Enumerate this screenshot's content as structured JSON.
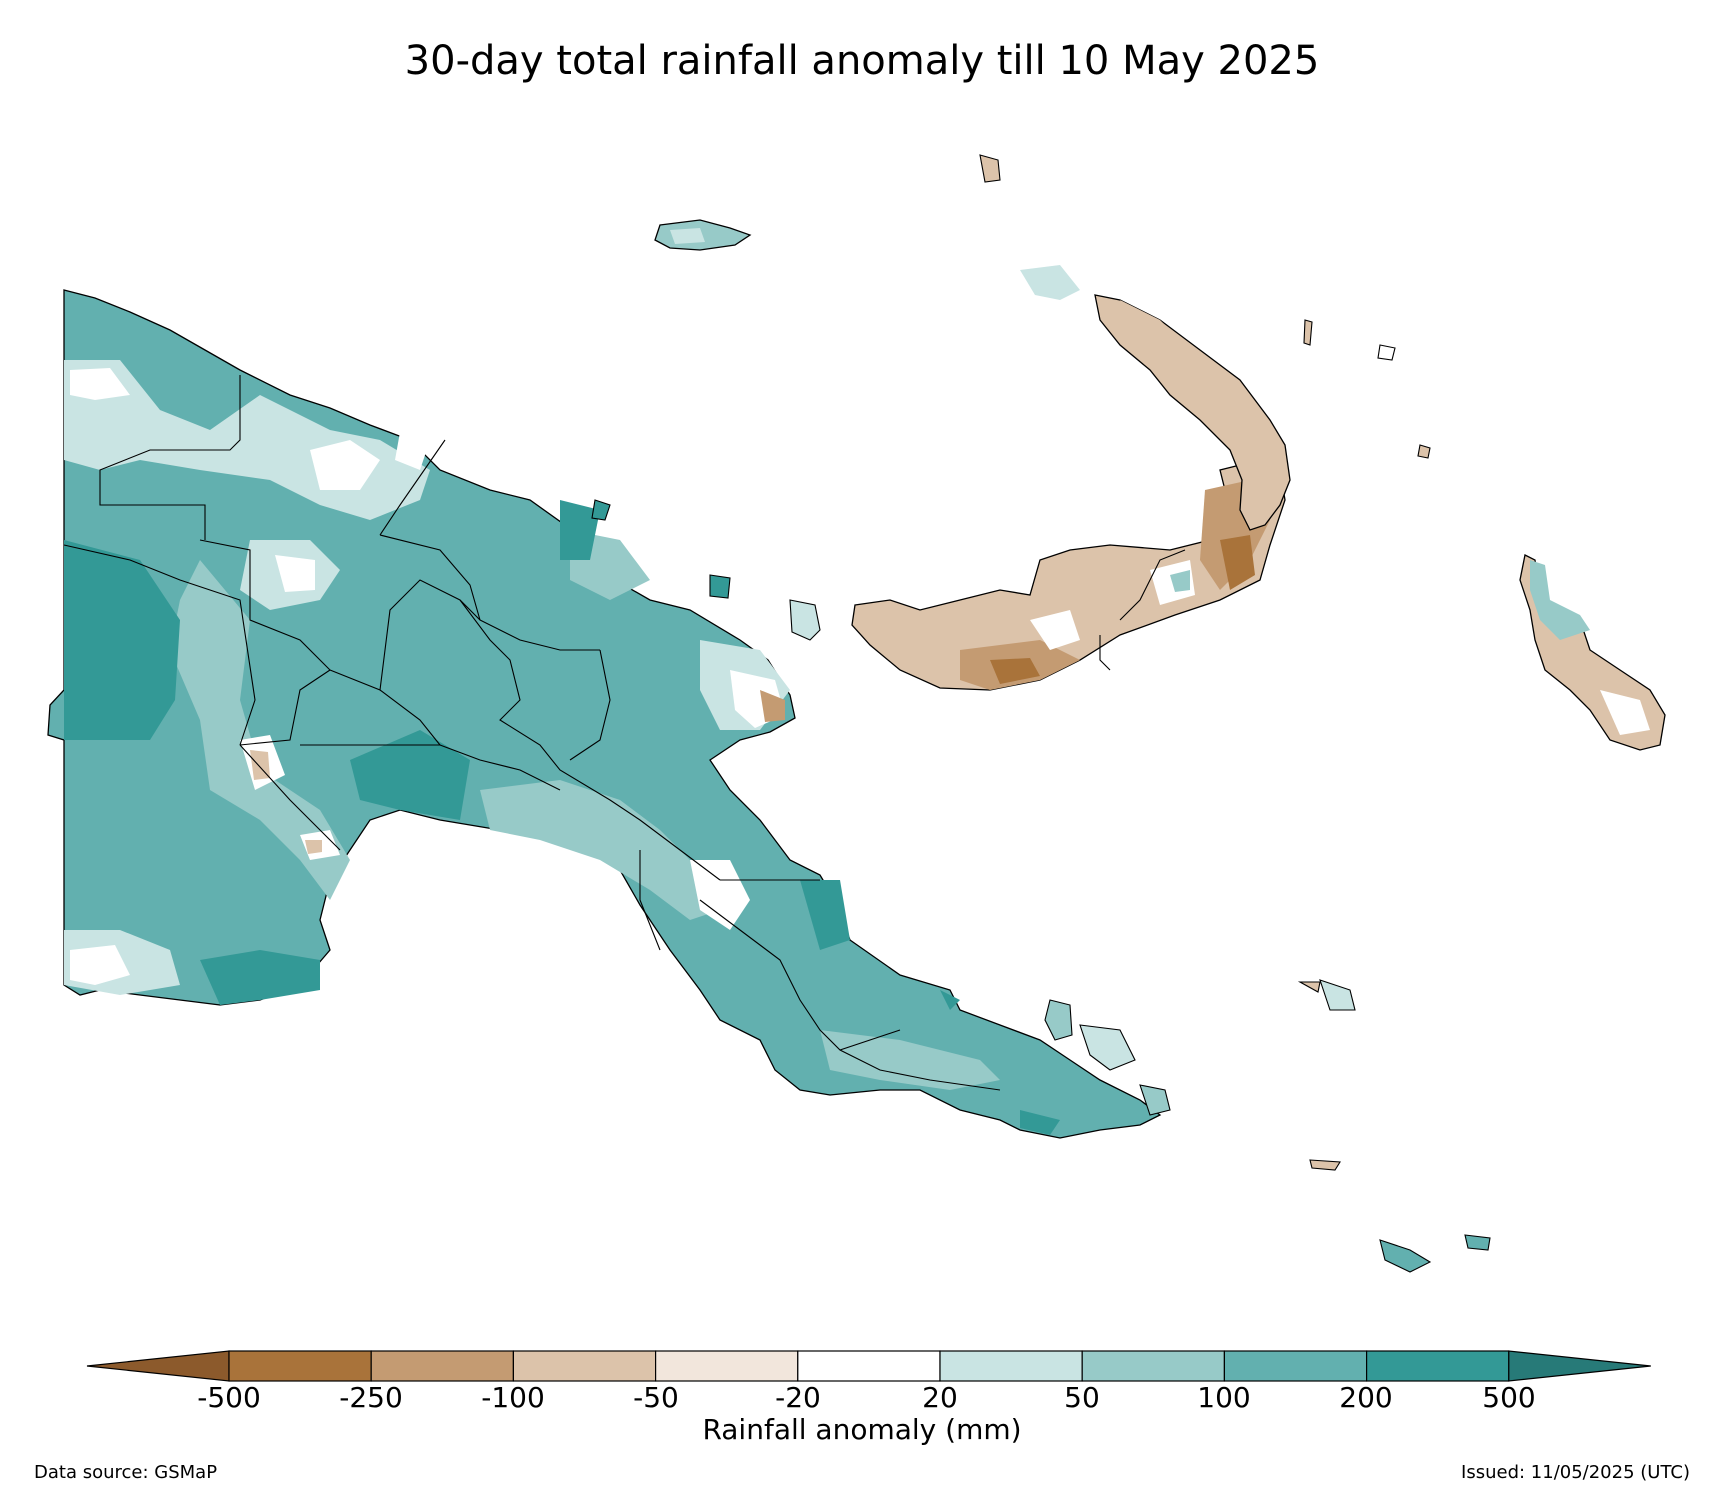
{
  "title": "30-day total rainfall anomaly till 10 May 2025",
  "colorbar": {
    "label": "Rainfall anomaly (mm)",
    "ticks": [
      "-500",
      "-250",
      "-100",
      "-50",
      "-20",
      "20",
      "50",
      "100",
      "200",
      "500"
    ],
    "colors": {
      "below_min": "#8c5a2c",
      "bins": [
        "#a9733a",
        "#c49b72",
        "#dcc3aa",
        "#f2e6dc",
        "#ffffff",
        "#c9e4e3",
        "#97cac8",
        "#62b0af",
        "#339996"
      ],
      "above_max": "#277a78"
    }
  },
  "footer": {
    "source": "Data source: GSMaP",
    "issued": "Issued: 11/05/2025 (UTC)"
  }
}
